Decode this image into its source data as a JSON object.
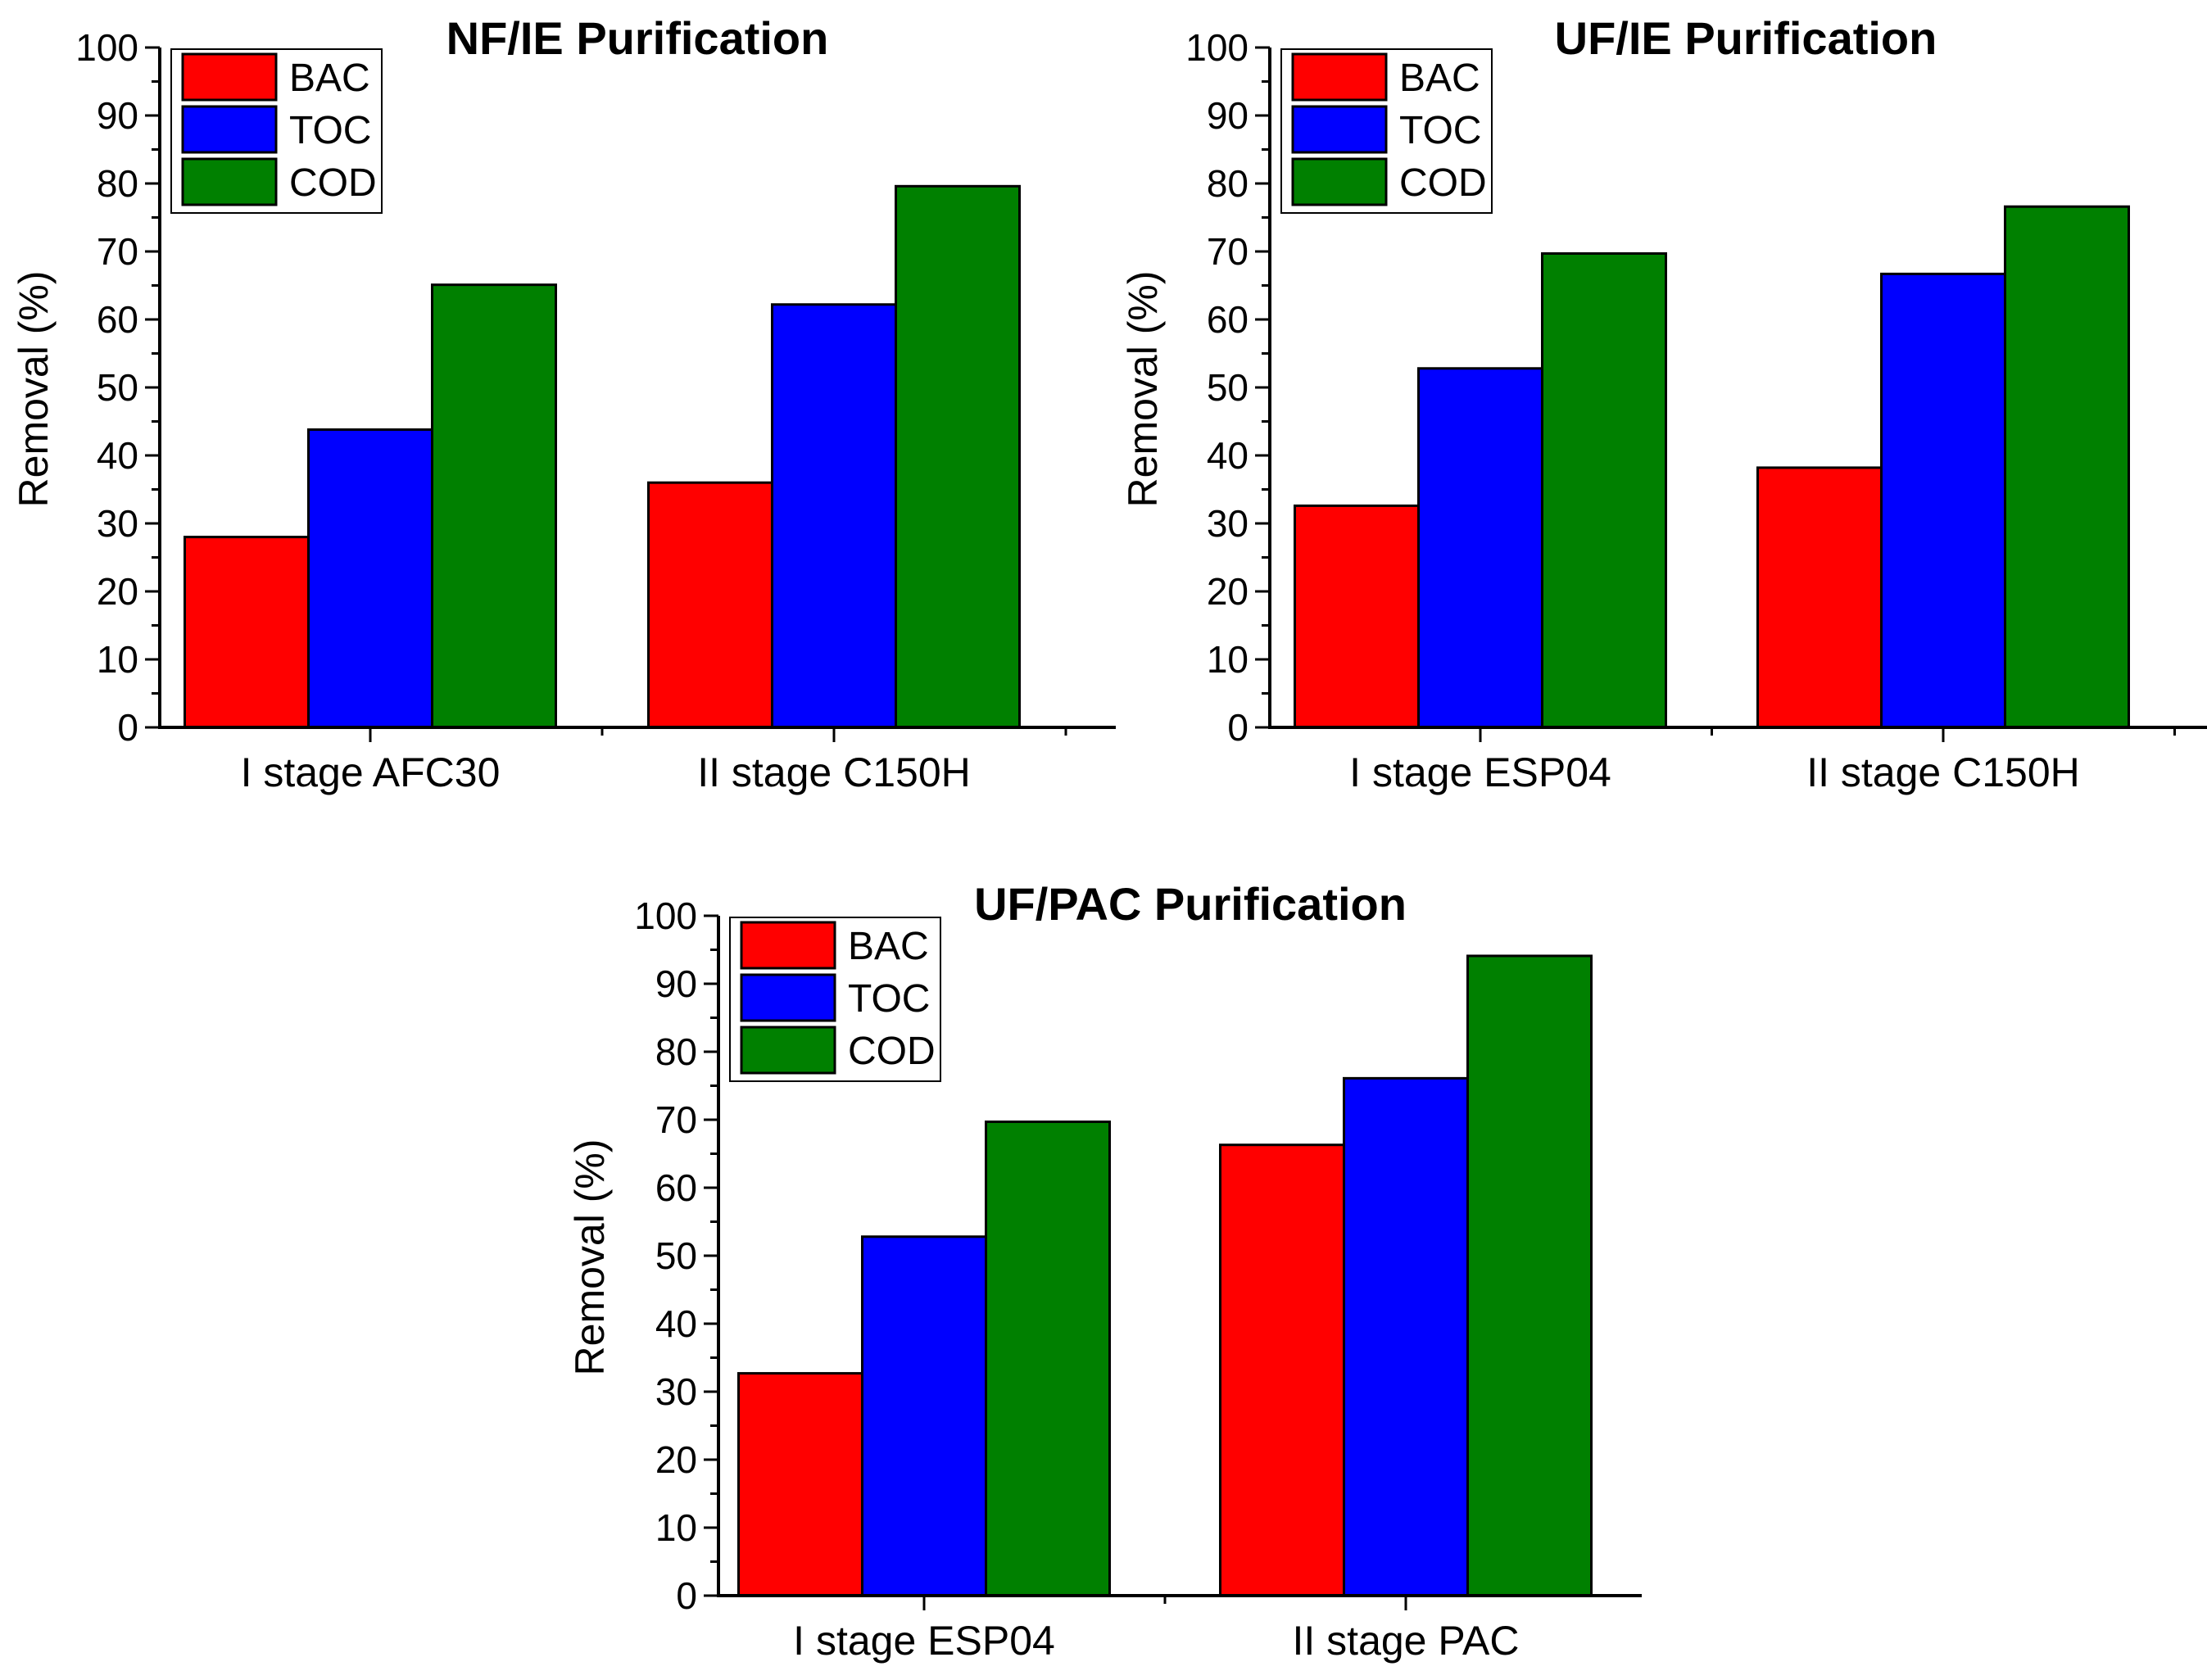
{
  "colors": {
    "BAC": "#ff0000",
    "TOC": "#0000ff",
    "COD": "#008000",
    "axis": "#000000"
  },
  "chart_data": [
    {
      "type": "bar",
      "title": "NF/IE Purification",
      "ylabel": "Removal (%)",
      "xlabel": "",
      "ylim": [
        0,
        100
      ],
      "yticks": [
        "0",
        "10",
        "20",
        "30",
        "40",
        "50",
        "60",
        "70",
        "80",
        "90",
        "100"
      ],
      "categories": [
        "I stage AFC30",
        "II stage C150H"
      ],
      "legend_position": "top-left",
      "series": [
        {
          "name": "BAC",
          "values": [
            28,
            36
          ]
        },
        {
          "name": "TOC",
          "values": [
            43.8,
            62.2
          ]
        },
        {
          "name": "COD",
          "values": [
            65.1,
            79.6
          ]
        }
      ]
    },
    {
      "type": "bar",
      "title": "UF/IE Purification",
      "ylabel": "Removal (%)",
      "xlabel": "",
      "ylim": [
        0,
        100
      ],
      "yticks": [
        "0",
        "10",
        "20",
        "30",
        "40",
        "50",
        "60",
        "70",
        "80",
        "90",
        "100"
      ],
      "categories": [
        "I stage ESP04",
        "II stage C150H"
      ],
      "legend_position": "top-left",
      "series": [
        {
          "name": "BAC",
          "values": [
            32.6,
            38.2
          ]
        },
        {
          "name": "TOC",
          "values": [
            52.8,
            66.7
          ]
        },
        {
          "name": "COD",
          "values": [
            69.7,
            76.6
          ]
        }
      ]
    },
    {
      "type": "bar",
      "title": "UF/PAC Purification",
      "ylabel": "Removal (%)",
      "xlabel": "",
      "ylim": [
        0,
        100
      ],
      "yticks": [
        "0",
        "10",
        "20",
        "30",
        "40",
        "50",
        "60",
        "70",
        "80",
        "90",
        "100"
      ],
      "categories": [
        "I stage ESP04",
        "II stage PAC"
      ],
      "legend_position": "top-left",
      "series": [
        {
          "name": "BAC",
          "values": [
            32.7,
            66.3
          ]
        },
        {
          "name": "TOC",
          "values": [
            52.8,
            76.1
          ]
        },
        {
          "name": "COD",
          "values": [
            69.7,
            94.1
          ]
        }
      ]
    }
  ]
}
